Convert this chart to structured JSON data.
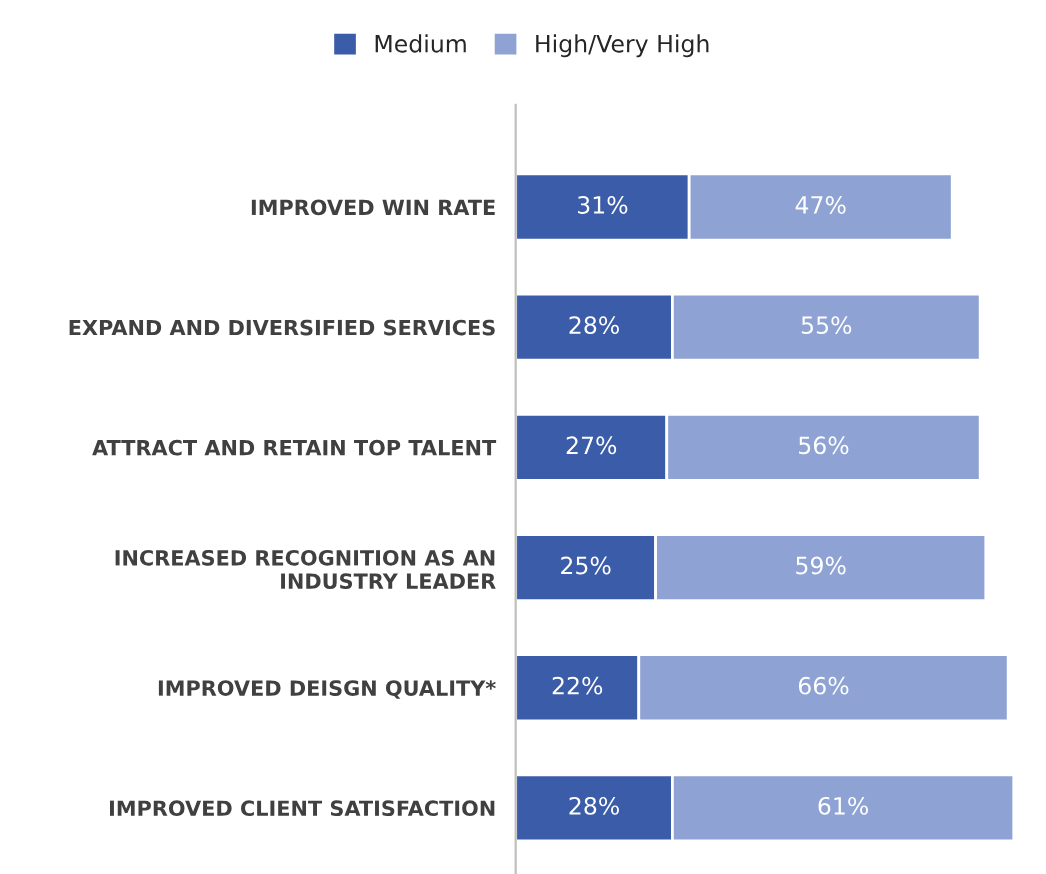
{
  "chart_data": {
    "type": "bar",
    "orientation": "horizontal",
    "stacked": true,
    "categories": [
      "IMPROVED WIN RATE",
      "EXPAND AND DIVERSIFIED SERVICES",
      "ATTRACT AND RETAIN TOP TALENT",
      "INCREASED RECOGNITION AS AN\nINDUSTRY LEADER",
      "IMPROVED DEISGN QUALITY*",
      "IMPROVED CLIENT SATISFACTION"
    ],
    "series": [
      {
        "name": "Medium",
        "color": "#3b5ca8",
        "values": [
          31,
          28,
          27,
          25,
          22,
          28
        ],
        "value_labels": [
          "31%",
          "28%",
          "27%",
          "25%",
          "22%",
          "28%"
        ]
      },
      {
        "name": "High/Very High",
        "color": "#8fa2d4",
        "values": [
          47,
          55,
          56,
          59,
          66,
          61
        ],
        "value_labels": [
          "47%",
          "55%",
          "56%",
          "59%",
          "66%",
          "61%"
        ]
      }
    ],
    "tick_labels": "y",
    "legend": "top",
    "grid": false
  }
}
